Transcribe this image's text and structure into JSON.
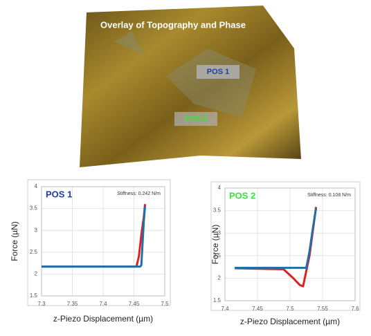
{
  "image": {
    "title": "Overlay of Topography and Phase",
    "labels": [
      "POS 1",
      "POS 2"
    ]
  },
  "chart_data": [
    {
      "type": "line",
      "title": "POS 1",
      "annotation": "Stiffness: 0.242 N/m",
      "x_label": "z-Piezo Displacement (µm)",
      "y_label": "Force (µN)",
      "xlim": [
        7.3,
        7.5
      ],
      "xticks": [
        7.3,
        7.35,
        7.4,
        7.45,
        7.5
      ],
      "ylim": [
        1.5,
        4
      ],
      "yticks": [
        1.5,
        2,
        2.5,
        3,
        3.5,
        4
      ],
      "grid": true,
      "series": [
        {
          "color": "#e02020",
          "x": [
            7.3,
            7.454,
            7.458,
            7.462,
            7.466,
            7.468
          ],
          "values": [
            2.17,
            2.17,
            2.4,
            2.9,
            3.3,
            3.6
          ]
        },
        {
          "color": "#1f6fa8",
          "x": [
            7.3,
            7.46,
            7.462,
            7.464,
            7.466,
            7.468
          ],
          "values": [
            2.17,
            2.17,
            2.2,
            2.7,
            3.2,
            3.55
          ]
        }
      ]
    },
    {
      "type": "line",
      "title": "POS 2",
      "annotation": "Stiffness: 0.108 N/m",
      "x_label": "z-Piezo Displacement (µm)",
      "y_label": "Force (µN)",
      "xlim": [
        7.4,
        7.6
      ],
      "xticks": [
        7.4,
        7.45,
        7.5,
        7.55,
        7.6
      ],
      "ylim": [
        1.5,
        4
      ],
      "yticks": [
        1.5,
        2,
        2.5,
        3,
        3.5,
        4
      ],
      "grid": true,
      "series": [
        {
          "color": "#e02020",
          "x": [
            7.415,
            7.49,
            7.505,
            7.515,
            7.52,
            7.53,
            7.54
          ],
          "values": [
            2.22,
            2.2,
            2.0,
            1.85,
            1.82,
            2.5,
            3.58
          ]
        },
        {
          "color": "#1f6fa8",
          "x": [
            7.415,
            7.525,
            7.53,
            7.535,
            7.54
          ],
          "values": [
            2.23,
            2.23,
            2.6,
            3.1,
            3.55
          ]
        }
      ]
    }
  ]
}
